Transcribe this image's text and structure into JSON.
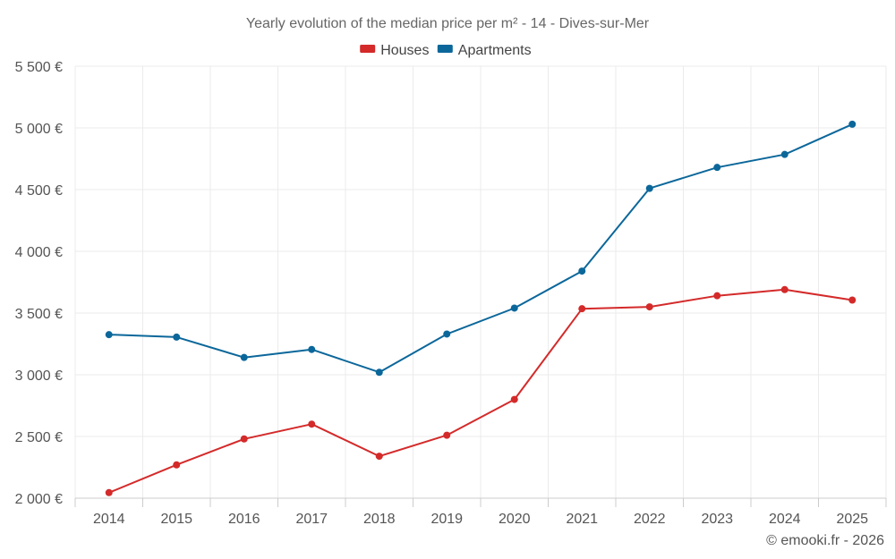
{
  "chart_data": {
    "type": "line",
    "title": "Yearly evolution of the median price per m² - 14 - Dives-sur-Mer",
    "categories": [
      "2014",
      "2015",
      "2016",
      "2017",
      "2018",
      "2019",
      "2020",
      "2021",
      "2022",
      "2023",
      "2024",
      "2025"
    ],
    "series": [
      {
        "name": "Houses",
        "color": "#d42a2a",
        "values": [
          2045,
          2270,
          2480,
          2600,
          2340,
          2510,
          2800,
          3535,
          3550,
          3640,
          3690,
          3605
        ]
      },
      {
        "name": "Apartments",
        "color": "#0b679a",
        "values": [
          3325,
          3305,
          3140,
          3205,
          3020,
          3330,
          3540,
          3840,
          4510,
          4680,
          4785,
          5030
        ]
      }
    ],
    "y_ticks": [
      {
        "value": 2000,
        "label": "2 000 €"
      },
      {
        "value": 2500,
        "label": "2 500 €"
      },
      {
        "value": 3000,
        "label": "3 000 €"
      },
      {
        "value": 3500,
        "label": "3 500 €"
      },
      {
        "value": 4000,
        "label": "4 000 €"
      },
      {
        "value": 4500,
        "label": "4 500 €"
      },
      {
        "value": 5000,
        "label": "5 000 €"
      },
      {
        "value": 5500,
        "label": "5 500 €"
      }
    ],
    "ylim": [
      2000,
      5500
    ],
    "xlabel": "",
    "ylabel": "",
    "grid": true,
    "legend_position": "top-center"
  },
  "credit": "© emooki.fr - 2026"
}
